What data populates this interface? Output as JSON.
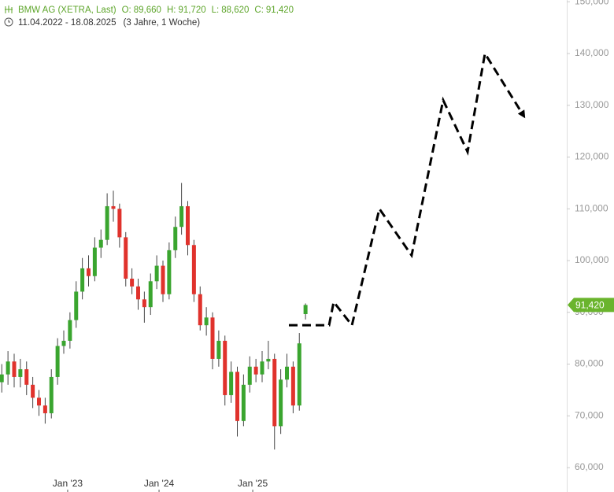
{
  "chart_data": {
    "type": "candlestick",
    "title": "BMW AG (XETRA, Last)",
    "ohlc_header": [
      {
        "label": "O:",
        "value": "89,660"
      },
      {
        "label": "H:",
        "value": "91,720"
      },
      {
        "label": "L:",
        "value": "88,620"
      },
      {
        "label": "C:",
        "value": "91,420"
      }
    ],
    "date_range": "11.04.2022 - 18.08.2025",
    "period": "(3 Jahre, 1 Woche)",
    "up_color": "#3aa52f",
    "down_color": "#e0322c",
    "candles": {
      "x": [
        1,
        4.5,
        8,
        11.5,
        15,
        18.5,
        22,
        25.5,
        29,
        32.5,
        36,
        39.5,
        43,
        46.5,
        50,
        53.5,
        57,
        60.5,
        64,
        67.5,
        71,
        74.5,
        78,
        81.5,
        85,
        88.5,
        92,
        95.5,
        99,
        102.5,
        106,
        109.5,
        113,
        116.5,
        120,
        123.5,
        127,
        130.5,
        134,
        137.5,
        141,
        144.5,
        148,
        151.5,
        155,
        158.5,
        162,
        165.5,
        169,
        172.5
      ],
      "open": [
        76500,
        78000,
        80500,
        77500,
        79000,
        76000,
        73500,
        72000,
        70500,
        77500,
        83500,
        84500,
        88500,
        94000,
        98500,
        97000,
        102500,
        104000,
        110500,
        110000,
        104500,
        96500,
        95000,
        92500,
        91000,
        96000,
        99000,
        93500,
        102000,
        106500,
        110500,
        103000,
        93500,
        87500,
        89000,
        81000,
        84500,
        74000,
        78500,
        69000,
        76000,
        79500,
        78000,
        80500,
        81000,
        68000,
        77000,
        79500,
        72000,
        89660
      ],
      "high": [
        80000,
        82500,
        82000,
        81000,
        80500,
        77500,
        75000,
        73500,
        79000,
        85000,
        86500,
        90000,
        96000,
        100500,
        101000,
        104500,
        106000,
        113000,
        113500,
        111000,
        105500,
        98500,
        96500,
        94000,
        97500,
        101000,
        100000,
        103500,
        108500,
        115000,
        111500,
        104000,
        95000,
        91000,
        90000,
        86500,
        85500,
        80500,
        79500,
        78000,
        81500,
        81000,
        82500,
        84500,
        82000,
        79000,
        82000,
        80500,
        86000,
        91720
      ],
      "low": [
        74500,
        76000,
        75500,
        75500,
        74000,
        71500,
        70000,
        68500,
        69500,
        76000,
        82000,
        83000,
        87000,
        92500,
        95000,
        96000,
        100500,
        103000,
        107500,
        102500,
        95000,
        93500,
        90500,
        88000,
        89500,
        94500,
        92000,
        92500,
        100500,
        105000,
        101000,
        92000,
        86500,
        85500,
        79000,
        79500,
        72000,
        72500,
        66000,
        68000,
        74500,
        76500,
        76500,
        79000,
        63500,
        66500,
        75500,
        70500,
        71000,
        88620
      ],
      "close": [
        78000,
        80500,
        77500,
        79000,
        76000,
        73500,
        72000,
        70500,
        77500,
        83500,
        84500,
        88500,
        94000,
        98500,
        97000,
        102500,
        104000,
        110500,
        110000,
        104500,
        96500,
        95000,
        92500,
        91000,
        96000,
        99000,
        93500,
        102000,
        106500,
        110500,
        103000,
        93500,
        87500,
        89000,
        81000,
        84500,
        74000,
        78500,
        69000,
        76000,
        79500,
        78000,
        80500,
        81000,
        68000,
        77000,
        79500,
        72000,
        84000,
        91420
      ]
    },
    "price_tag": {
      "value": 91420,
      "label": "91,420",
      "color": "#6ab42d"
    },
    "projection": {
      "x": [
        163.1,
        185.8,
        188.4,
        198.7,
        214.2,
        232.4,
        250.2,
        264,
        273.8,
        295.6
      ],
      "values": [
        87500,
        87500,
        92000,
        87500,
        110000,
        101000,
        131000,
        121000,
        140000,
        128000
      ],
      "color": "#000000",
      "dashed": true,
      "arrow": true
    },
    "xlim": [
      0,
      320
    ],
    "xticks": [
      {
        "value": 38.2,
        "label": "Jan '23"
      },
      {
        "value": 89.8,
        "label": "Jan '24"
      },
      {
        "value": 142.7,
        "label": "Jan '25"
      }
    ],
    "ylim": [
      55285,
      150342
    ],
    "yticks": [
      {
        "value": 60000,
        "label": "60,000"
      },
      {
        "value": 70000,
        "label": "70,000"
      },
      {
        "value": 80000,
        "label": "80,000"
      },
      {
        "value": 90000,
        "label": "90,000"
      },
      {
        "value": 100000,
        "label": "100,000"
      },
      {
        "value": 110000,
        "label": "110,000"
      },
      {
        "value": 120000,
        "label": "120,000"
      },
      {
        "value": 130000,
        "label": "130,000"
      },
      {
        "value": 140000,
        "label": "140,000"
      },
      {
        "value": 150000,
        "label": "150,000"
      }
    ]
  }
}
